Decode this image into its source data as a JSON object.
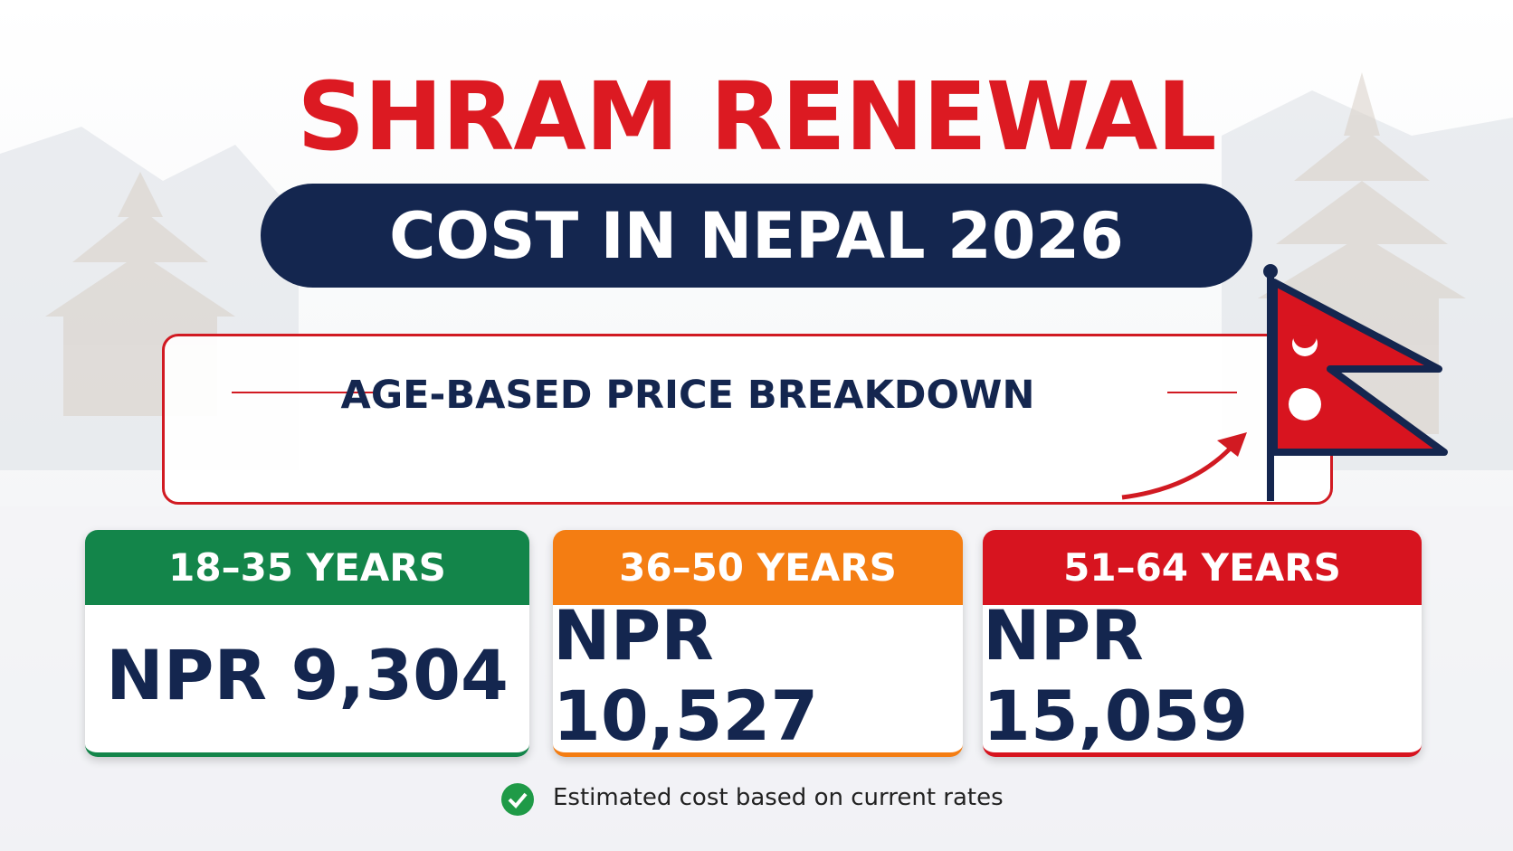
{
  "header": {
    "title": "SHRAM RENEWAL",
    "subtitle": "COST IN NEPAL 2026"
  },
  "banner": {
    "label": "AGE-BASED PRICE BREAKDOWN"
  },
  "cards": [
    {
      "age": "18–35 YEARS",
      "price": "NPR 9,304"
    },
    {
      "age": "36–50 YEARS",
      "price": "NPR 10,527"
    },
    {
      "age": "51–64 YEARS",
      "price": "NPR 15,059"
    }
  ],
  "footnote": "Estimated cost based on current rates"
}
